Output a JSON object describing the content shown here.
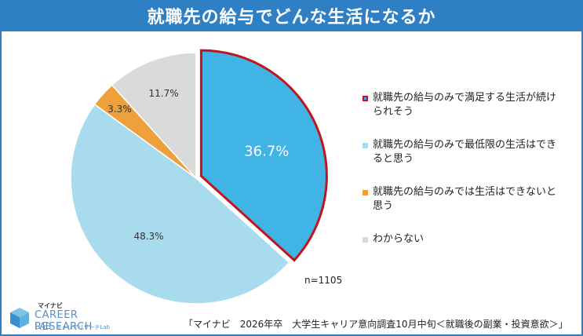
{
  "title": "就職先の給与でどんな生活になるか",
  "chart_data": {
    "type": "pie",
    "title": "就職先の給与でどんな生活になるか",
    "slices": [
      {
        "label": "就職先の給与のみで満足する生活が続けられそう",
        "value": 36.7,
        "value_label": "36.7%",
        "color": "#41b4e6",
        "highlight": true
      },
      {
        "label": "就職先の給与のみで最低限の生活はできると思う",
        "value": 48.3,
        "value_label": "48.3%",
        "color": "#a9dbee"
      },
      {
        "label": "就職先の給与のみでは生活はできないと思う",
        "value": 3.3,
        "value_label": "3.3%",
        "color": "#eea03a"
      },
      {
        "label": "わからない",
        "value": 11.7,
        "value_label": "11.7%",
        "color": "#dadada"
      }
    ],
    "legend_position": "right"
  },
  "highlight_border_color": "#c0151f",
  "sample_size": "n=1105",
  "source": "「マイナビ　2026年卒　大学生キャリア意向調査10月中旬＜就職後の副業・投資意欲＞」",
  "logo": {
    "small": "マイナビ",
    "line1": "CAREER RESEARCH",
    "line2": "LAB",
    "sub": "キャリアリサーチLab"
  }
}
